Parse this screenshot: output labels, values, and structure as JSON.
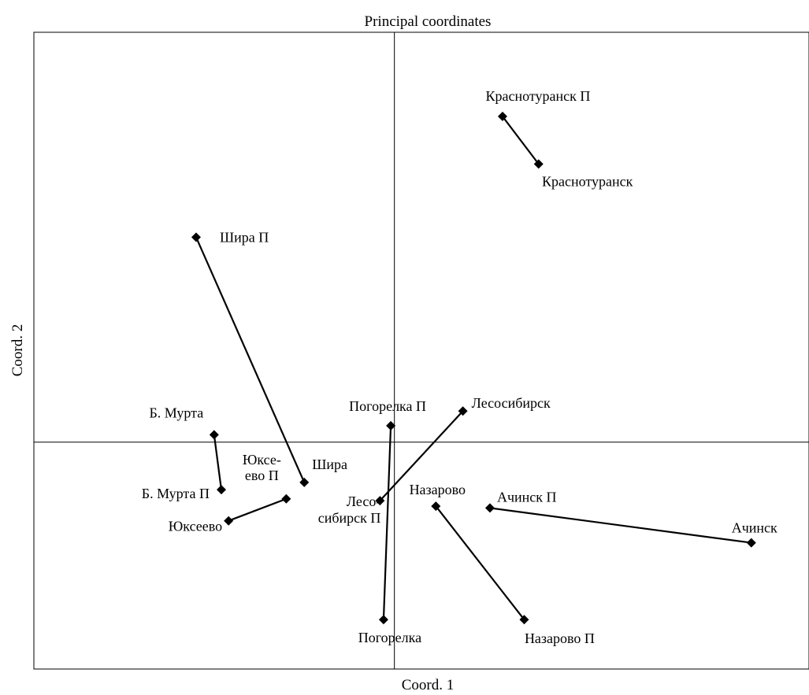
{
  "chart_data": {
    "type": "scatter",
    "title": "Principal coordinates",
    "xlabel": "Coord. 1",
    "ylabel": "Coord. 2",
    "xlim": [
      -1.0,
      1.15
    ],
    "ylim": [
      -0.62,
      1.12
    ],
    "grid": false,
    "zero_lines": true,
    "points": [
      {
        "id": "krasnoturansk_p",
        "label": "Краснотуранск П",
        "x": 0.3,
        "y": 0.89
      },
      {
        "id": "krasnoturansk",
        "label": "Краснотуранск",
        "x": 0.4,
        "y": 0.76
      },
      {
        "id": "shira_p",
        "label": "Шира П",
        "x": -0.55,
        "y": 0.56
      },
      {
        "id": "shira",
        "label": "Шира",
        "x": -0.25,
        "y": -0.11
      },
      {
        "id": "b_murta",
        "label": "Б. Мурта",
        "x": -0.5,
        "y": 0.02
      },
      {
        "id": "b_murta_p",
        "label": "Б. Мурта П",
        "x": -0.48,
        "y": -0.13
      },
      {
        "id": "yukseevo_p",
        "label": "Юксе-ево П",
        "label_lines": [
          "Юксе-",
          "ево П"
        ],
        "x": -0.3,
        "y": -0.155
      },
      {
        "id": "yukseevo",
        "label": "Юксеево",
        "x": -0.46,
        "y": -0.215
      },
      {
        "id": "pogorelka_p",
        "label": "Погорелка П",
        "x": -0.01,
        "y": 0.045
      },
      {
        "id": "pogorelka",
        "label": "Погорелка",
        "x": -0.03,
        "y": -0.485
      },
      {
        "id": "lesosibirsk",
        "label": "Лесосибирск",
        "x": 0.19,
        "y": 0.085
      },
      {
        "id": "lesosibirsk_p",
        "label": "Лесо-сибирск П",
        "label_lines": [
          "Лесо-",
          "сибирск П"
        ],
        "x": -0.04,
        "y": -0.16
      },
      {
        "id": "nazarovo",
        "label": "Назарово",
        "x": 0.115,
        "y": -0.175
      },
      {
        "id": "nazarovo_p",
        "label": "Назарово П",
        "x": 0.36,
        "y": -0.485
      },
      {
        "id": "achinsk_p",
        "label": "Ачинск П",
        "x": 0.265,
        "y": -0.18
      },
      {
        "id": "achinsk",
        "label": "Ачинск",
        "x": 0.99,
        "y": -0.275
      }
    ],
    "pairs": [
      [
        "krasnoturansk_p",
        "krasnoturansk"
      ],
      [
        "shira_p",
        "shira"
      ],
      [
        "b_murta",
        "b_murta_p"
      ],
      [
        "yukseevo_p",
        "yukseevo"
      ],
      [
        "pogorelka_p",
        "pogorelka"
      ],
      [
        "lesosibirsk",
        "lesosibirsk_p"
      ],
      [
        "nazarovo",
        "nazarovo_p"
      ],
      [
        "achinsk_p",
        "achinsk"
      ]
    ],
    "colors": {
      "marker": "#000000",
      "line": "#000000",
      "axis": "#000000"
    }
  }
}
